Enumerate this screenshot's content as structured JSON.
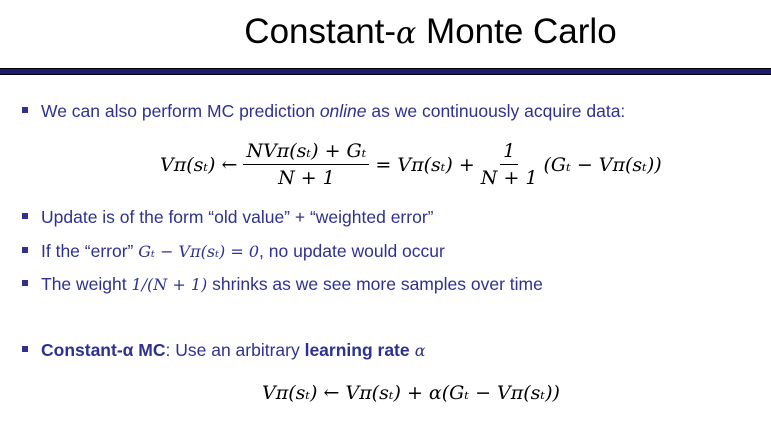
{
  "title": {
    "prefix": "Constant-",
    "alpha": "α",
    "suffix": " Monte Carlo"
  },
  "bullets": [
    {
      "before": "We can also perform MC prediction ",
      "em": "online",
      "after": " as we continuously acquire data:"
    },
    {
      "text": "Update is of the form “old value” + “weighted error”"
    },
    {
      "before": "If the “error” ",
      "math": "Gₜ − Vπ(sₜ) = 0",
      "after": ", no update would occur"
    },
    {
      "before": "The weight ",
      "math": "1/(N + 1)",
      "after": " shrinks as we see more samples over time"
    },
    {
      "bold": "Constant-α MC",
      "mid": ": Use an arbitrary ",
      "bold2": "learning rate",
      "math": " α"
    }
  ],
  "equation1": {
    "lhs": "Vπ(sₜ) ←",
    "num": "NVπ(sₜ) + Gₜ",
    "den": "N + 1",
    "mid": "= Vπ(sₜ) +",
    "num2": "1",
    "den2": "N + 1",
    "rhs": "(Gₜ − Vπ(sₜ))"
  },
  "equation2": {
    "text": "Vπ(sₜ) ← Vπ(sₜ) + α(Gₜ − Vπ(sₜ))"
  }
}
